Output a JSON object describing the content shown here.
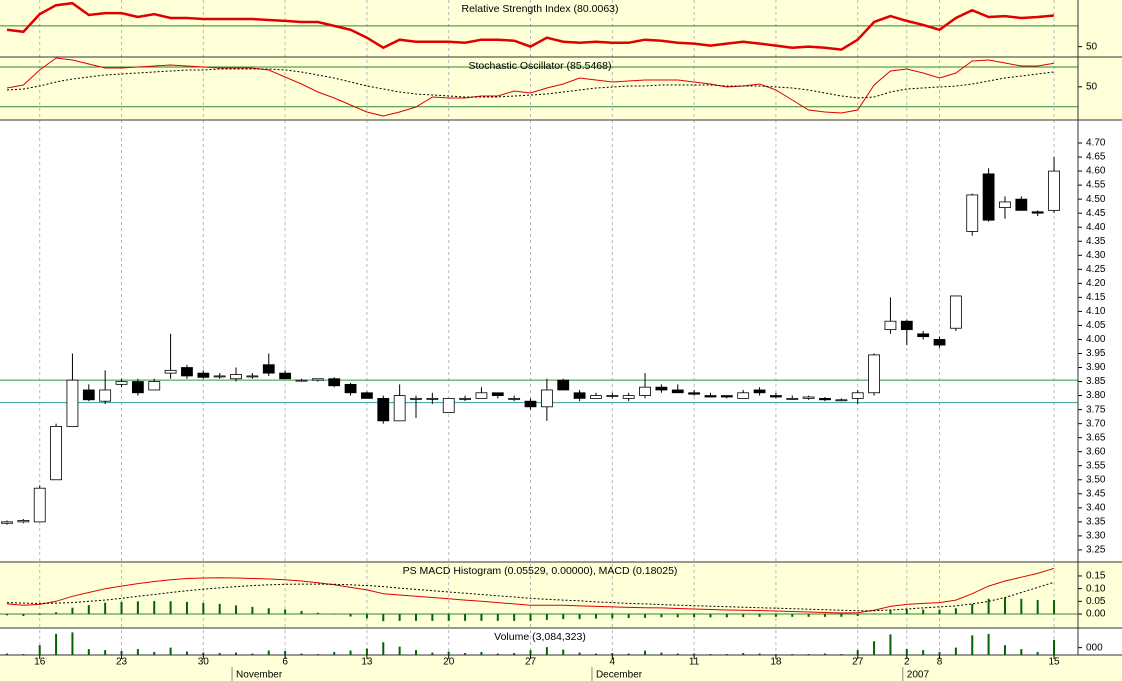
{
  "chart_data": [
    {
      "type": "line",
      "title": "Relative Strength Index (80.0063)",
      "ylim": [
        40,
        95
      ],
      "yticks": [
        50
      ],
      "hlines": [
        {
          "value": 70,
          "color": "#2e8b2e"
        }
      ],
      "series": [
        {
          "color": "#e00000",
          "style": "thick",
          "values": [
            66.2,
            64.3,
            81.4,
            90,
            91.9,
            80.5,
            82.4,
            82.4,
            78.6,
            81.4,
            77.6,
            77.6,
            76.7,
            76.7,
            76.7,
            76.7,
            75.7,
            74.8,
            73.8,
            73.8,
            70,
            66.2,
            58.6,
            49,
            56.7,
            54.8,
            54.8,
            54.8,
            53.8,
            56.7,
            56.7,
            55.7,
            50,
            58.6,
            54.8,
            53.8,
            54.8,
            53.8,
            53.8,
            56.7,
            55.7,
            53.8,
            52.9,
            51,
            52.9,
            54.8,
            52.9,
            51,
            49,
            50,
            49,
            47.1,
            56.7,
            73.8,
            79.5,
            74.8,
            71,
            66.2,
            77.6,
            85.2,
            78.6,
            79.5,
            77.6,
            78.6,
            80
          ]
        }
      ]
    },
    {
      "type": "line",
      "title": "Stochastic Oscillator (85.5468)",
      "ylim": [
        0,
        95
      ],
      "yticks": [
        50
      ],
      "hlines": [
        {
          "value": 80,
          "color": "#2e8b2e"
        },
        {
          "value": 20,
          "color": "#2e8b2e"
        }
      ],
      "series": [
        {
          "color": "#e00000",
          "style": "solid",
          "values": [
            48.3,
            52.8,
            75.4,
            93.5,
            90.5,
            84.4,
            78.4,
            78.4,
            79.9,
            81.4,
            82.9,
            81.4,
            79.9,
            78.4,
            78.4,
            78.4,
            75.4,
            64.8,
            54.3,
            42.2,
            33.2,
            22.6,
            12.1,
            6,
            12.1,
            19.6,
            34.7,
            33.2,
            33.2,
            36.2,
            36.2,
            43.7,
            40.7,
            48.3,
            54.3,
            63.3,
            60.3,
            57.3,
            58.8,
            60.3,
            60.3,
            60.3,
            57.3,
            54.3,
            49.8,
            51.3,
            54.3,
            45.2,
            30.2,
            15.1,
            12.1,
            10.6,
            15.1,
            52.8,
            73.9,
            76.9,
            70.9,
            63.3,
            70.9,
            89,
            90.5,
            86,
            81.4,
            81.4,
            85.5
          ]
        },
        {
          "color": "#000000",
          "style": "dotted",
          "values": [
            45.2,
            46.7,
            51.3,
            57.3,
            61.8,
            64.8,
            67.9,
            69.4,
            70.9,
            72.4,
            73.9,
            75.4,
            75.4,
            76.9,
            76.9,
            76.9,
            76.9,
            75.4,
            72.4,
            67.9,
            63.3,
            57.3,
            51.3,
            46.7,
            42.2,
            39.2,
            37.7,
            36.2,
            34.7,
            34.7,
            34.7,
            36.2,
            37.7,
            39.2,
            42.2,
            45.2,
            48.3,
            49.8,
            51.3,
            51.3,
            52.8,
            52.8,
            52.8,
            52.8,
            51.3,
            51.3,
            51.3,
            49.8,
            48.3,
            45.2,
            40.7,
            36.2,
            33.2,
            34.7,
            42.2,
            46.7,
            48.3,
            49.8,
            51.3,
            54.3,
            58.8,
            63.3,
            66.4,
            69.4,
            72.4
          ]
        }
      ]
    },
    {
      "type": "candlestick",
      "ylim": [
        3.207,
        4.782
      ],
      "grid": true,
      "up_color": "#ffffff",
      "down_color": "#000000",
      "yticks": [
        3.25,
        {
          "value": 3.3,
          "label": "3.30"
        },
        3.35,
        {
          "value": 3.4,
          "label": "3.40"
        },
        3.45,
        {
          "value": 3.5,
          "label": "3.50"
        },
        3.55,
        {
          "value": 3.6,
          "label": "3.60"
        },
        3.65,
        {
          "value": 3.7,
          "label": "3.70"
        },
        3.75,
        {
          "value": 3.8,
          "label": "3.80"
        },
        3.85,
        {
          "value": 3.9,
          "label": "3.90"
        },
        3.95,
        {
          "value": 4,
          "label": "4.00"
        },
        4.05,
        {
          "value": 4.1,
          "label": "4.10"
        },
        4.15,
        {
          "value": 4.2,
          "label": "4.20"
        },
        4.25,
        {
          "value": 4.3,
          "label": "4.30"
        },
        4.35,
        {
          "value": 4.4,
          "label": "4.40"
        },
        4.45,
        {
          "value": 4.5,
          "label": "4.50"
        },
        4.55,
        {
          "value": 4.6,
          "label": "4.60"
        },
        4.65,
        {
          "value": 4.7,
          "label": "4.70"
        }
      ],
      "hlines": [
        {
          "value": 3.855,
          "color": "#339933"
        },
        {
          "value": 3.775,
          "color": "#33a0a0"
        }
      ],
      "categories": [
        null,
        null,
        "16",
        null,
        null,
        null,
        null,
        "23",
        null,
        null,
        null,
        null,
        "30",
        null,
        null,
        null,
        null,
        "6",
        null,
        null,
        null,
        null,
        "13",
        null,
        null,
        null,
        null,
        "20",
        null,
        null,
        null,
        null,
        "27",
        null,
        null,
        null,
        null,
        "4",
        null,
        null,
        null,
        null,
        "11",
        null,
        null,
        null,
        null,
        "18",
        null,
        null,
        null,
        null,
        "27",
        null,
        null,
        "2",
        null,
        "8",
        null,
        null,
        null,
        null,
        null,
        null,
        "15"
      ],
      "months": [
        null,
        null,
        null,
        null,
        null,
        null,
        null,
        null,
        null,
        null,
        null,
        null,
        null,
        null,
        "November",
        null,
        null,
        null,
        null,
        null,
        null,
        null,
        null,
        null,
        null,
        null,
        null,
        null,
        null,
        null,
        null,
        null,
        null,
        null,
        null,
        null,
        "December",
        null,
        null,
        null,
        null,
        null,
        null,
        null,
        null,
        null,
        null,
        null,
        null,
        null,
        null,
        null,
        null,
        null,
        null,
        "2007",
        null,
        null,
        null,
        null,
        null,
        null,
        null,
        null,
        null
      ],
      "open": [
        3.345,
        3.35,
        3.35,
        3.5,
        3.69,
        3.82,
        3.78,
        3.84,
        3.85,
        3.82,
        3.88,
        3.9,
        3.88,
        3.87,
        3.86,
        3.87,
        3.91,
        3.88,
        3.855,
        3.855,
        3.86,
        3.84,
        3.81,
        3.79,
        3.71,
        3.79,
        3.79,
        3.74,
        3.79,
        3.79,
        3.81,
        3.79,
        3.78,
        3.76,
        3.855,
        3.81,
        3.79,
        3.8,
        3.79,
        3.8,
        3.83,
        3.82,
        3.81,
        3.8,
        3.8,
        3.79,
        3.82,
        3.8,
        3.79,
        3.79,
        3.79,
        3.785,
        3.79,
        3.81,
        4.035,
        4.065,
        4.02,
        4.0,
        4.04,
        4.385,
        4.59,
        4.47,
        4.5,
        4.455,
        4.46
      ],
      "high": [
        3.355,
        3.36,
        3.48,
        3.7,
        3.95,
        3.84,
        3.89,
        3.86,
        3.86,
        3.86,
        4.02,
        3.91,
        3.89,
        3.88,
        3.9,
        3.88,
        3.95,
        3.89,
        3.86,
        3.86,
        3.865,
        3.845,
        3.815,
        3.8,
        3.84,
        3.8,
        3.81,
        3.79,
        3.8,
        3.83,
        3.81,
        3.8,
        3.79,
        3.86,
        3.86,
        3.82,
        3.81,
        3.81,
        3.81,
        3.88,
        3.84,
        3.84,
        3.82,
        3.81,
        3.8,
        3.82,
        3.83,
        3.81,
        3.8,
        3.8,
        3.795,
        3.79,
        3.82,
        3.95,
        4.15,
        4.07,
        4.03,
        4.01,
        4.155,
        4.52,
        4.61,
        4.51,
        4.51,
        4.46,
        4.65
      ],
      "low": [
        3.34,
        3.345,
        3.35,
        3.5,
        3.69,
        3.78,
        3.77,
        3.83,
        3.8,
        3.82,
        3.86,
        3.86,
        3.86,
        3.86,
        3.85,
        3.86,
        3.87,
        3.86,
        3.85,
        3.85,
        3.83,
        3.8,
        3.79,
        3.7,
        3.71,
        3.72,
        3.77,
        3.74,
        3.78,
        3.79,
        3.79,
        3.78,
        3.75,
        3.71,
        3.82,
        3.78,
        3.79,
        3.79,
        3.78,
        3.79,
        3.81,
        3.81,
        3.8,
        3.795,
        3.79,
        3.79,
        3.8,
        3.79,
        3.785,
        3.785,
        3.78,
        3.78,
        3.77,
        3.8,
        4.02,
        3.98,
        4.0,
        3.97,
        4.03,
        4.37,
        4.42,
        4.43,
        4.46,
        4.44,
        4.45
      ],
      "close": [
        3.35,
        3.355,
        3.47,
        3.69,
        3.855,
        3.785,
        3.82,
        3.85,
        3.81,
        3.85,
        3.89,
        3.87,
        3.865,
        3.87,
        3.875,
        3.87,
        3.88,
        3.86,
        3.855,
        3.86,
        3.835,
        3.81,
        3.79,
        3.71,
        3.8,
        3.79,
        3.79,
        3.79,
        3.79,
        3.81,
        3.8,
        3.79,
        3.76,
        3.82,
        3.82,
        3.79,
        3.8,
        3.8,
        3.8,
        3.83,
        3.82,
        3.81,
        3.805,
        3.795,
        3.795,
        3.81,
        3.81,
        3.795,
        3.79,
        3.795,
        3.785,
        3.785,
        3.81,
        3.945,
        4.065,
        4.035,
        4.01,
        3.98,
        4.155,
        4.515,
        4.425,
        4.49,
        4.46,
        4.45,
        4.6
      ]
    },
    {
      "type": "combo",
      "title": "PS MACD Histogram (0.05529, 0.00000), MACD (0.18025)",
      "ylim": [
        -0.055,
        0.205
      ],
      "yticks": [
        {
          "value": 0,
          "label": "0.00"
        },
        0.05,
        {
          "value": 0.1,
          "label": "0.10"
        },
        0.15
      ],
      "hlines": [
        {
          "value": 0,
          "color": "#2e8b2e"
        }
      ],
      "series": [
        {
          "color": "#006400",
          "style": "bar",
          "values": [
            -0.005,
            -0.008,
            -0.004,
            0.007,
            0.025,
            0.035,
            0.045,
            0.048,
            0.05,
            0.051,
            0.05,
            0.048,
            0.044,
            0.04,
            0.034,
            0.028,
            0.023,
            0.018,
            0.012,
            0.005,
            -0.002,
            -0.01,
            -0.017,
            -0.028,
            -0.027,
            -0.027,
            -0.027,
            -0.027,
            -0.027,
            -0.027,
            -0.027,
            -0.027,
            -0.027,
            -0.023,
            -0.02,
            -0.02,
            -0.018,
            -0.017,
            -0.016,
            -0.015,
            -0.013,
            -0.013,
            -0.013,
            -0.013,
            -0.013,
            -0.012,
            -0.011,
            -0.011,
            -0.011,
            -0.011,
            -0.011,
            -0.011,
            -0.008,
            0.002,
            0.014,
            0.018,
            0.018,
            0.017,
            0.023,
            0.04,
            0.06,
            0.065,
            0.06,
            0.055,
            0.055
          ]
        },
        {
          "color": "#e00000",
          "style": "solid",
          "values": [
            0.04,
            0.035,
            0.038,
            0.05,
            0.07,
            0.085,
            0.1,
            0.11,
            0.12,
            0.128,
            0.135,
            0.14,
            0.142,
            0.143,
            0.142,
            0.14,
            0.138,
            0.135,
            0.13,
            0.123,
            0.115,
            0.105,
            0.095,
            0.08,
            0.075,
            0.07,
            0.065,
            0.06,
            0.055,
            0.05,
            0.045,
            0.04,
            0.035,
            0.035,
            0.035,
            0.032,
            0.03,
            0.028,
            0.026,
            0.025,
            0.024,
            0.022,
            0.02,
            0.018,
            0.016,
            0.015,
            0.014,
            0.012,
            0.01,
            0.008,
            0.006,
            0.004,
            0.005,
            0.015,
            0.03,
            0.038,
            0.042,
            0.045,
            0.055,
            0.08,
            0.11,
            0.13,
            0.145,
            0.16,
            0.18
          ]
        },
        {
          "color": "#000000",
          "style": "dotted",
          "values": [
            0.045,
            0.043,
            0.042,
            0.043,
            0.045,
            0.05,
            0.055,
            0.062,
            0.07,
            0.077,
            0.085,
            0.092,
            0.098,
            0.103,
            0.108,
            0.112,
            0.115,
            0.117,
            0.118,
            0.118,
            0.117,
            0.115,
            0.112,
            0.108,
            0.102,
            0.097,
            0.092,
            0.087,
            0.082,
            0.077,
            0.072,
            0.067,
            0.062,
            0.058,
            0.055,
            0.052,
            0.048,
            0.045,
            0.042,
            0.04,
            0.037,
            0.035,
            0.033,
            0.031,
            0.029,
            0.027,
            0.025,
            0.023,
            0.021,
            0.019,
            0.017,
            0.015,
            0.013,
            0.013,
            0.016,
            0.02,
            0.024,
            0.028,
            0.032,
            0.04,
            0.05,
            0.065,
            0.085,
            0.105,
            0.125
          ]
        }
      ]
    },
    {
      "type": "bar",
      "title": "Volume (3,084,323)",
      "ylim": [
        0,
        5500000
      ],
      "color": "#006400",
      "yticks": [
        {
          "value": 1500000,
          "label": "000"
        }
      ],
      "values": [
        300000,
        200000,
        2000000,
        4300000,
        4600000,
        1200000,
        1000000,
        800000,
        1200000,
        600000,
        1500000,
        700000,
        500000,
        400000,
        500000,
        300000,
        900000,
        800000,
        300000,
        200000,
        600000,
        900000,
        1300000,
        2600000,
        1700000,
        1000000,
        500000,
        700000,
        400000,
        600000,
        300000,
        400000,
        1000000,
        1600000,
        1100000,
        500000,
        300000,
        400000,
        300000,
        900000,
        500000,
        300000,
        300000,
        200000,
        200000,
        400000,
        300000,
        200000,
        200000,
        200000,
        300000,
        200000,
        1000000,
        2800000,
        4200000,
        1200000,
        1000000,
        600000,
        1500000,
        4000000,
        4300000,
        2000000,
        1200000,
        600000,
        3084323
      ]
    }
  ]
}
